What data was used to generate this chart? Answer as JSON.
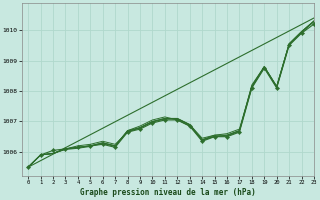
{
  "title": "Graphe pression niveau de la mer (hPa)",
  "bg_color": "#c8e8e0",
  "grid_color": "#b0d8cc",
  "line_color": "#2d6e2d",
  "xlim": [
    -0.5,
    23
  ],
  "ylim": [
    1005.2,
    1010.9
  ],
  "yticks": [
    1006,
    1007,
    1008,
    1009,
    1010
  ],
  "xticks": [
    0,
    1,
    2,
    3,
    4,
    5,
    6,
    7,
    8,
    9,
    10,
    11,
    12,
    13,
    14,
    15,
    16,
    17,
    18,
    19,
    20,
    21,
    22,
    23
  ],
  "series_marked": [
    1005.5,
    1005.9,
    1006.05,
    1006.1,
    1006.15,
    1006.2,
    1006.25,
    1006.15,
    1006.65,
    1006.75,
    1006.95,
    1007.05,
    1007.05,
    1006.85,
    1006.35,
    1006.5,
    1006.5,
    1006.65,
    1008.1,
    1008.75,
    1008.1,
    1009.5,
    1009.9,
    1010.2
  ],
  "series_smooth": [
    [
      1005.5,
      1005.9,
      1005.95,
      1006.1,
      1006.2,
      1006.25,
      1006.35,
      1006.25,
      1006.65,
      1006.8,
      1007.0,
      1007.1,
      1007.1,
      1006.9,
      1006.45,
      1006.55,
      1006.6,
      1006.75,
      1008.15,
      1008.8,
      1008.15,
      1009.55,
      1009.95,
      1010.3
    ],
    [
      1005.5,
      1005.9,
      1005.95,
      1006.1,
      1006.15,
      1006.2,
      1006.3,
      1006.2,
      1006.7,
      1006.85,
      1007.05,
      1007.15,
      1007.05,
      1006.85,
      1006.4,
      1006.5,
      1006.55,
      1006.7,
      1008.2,
      1008.8,
      1008.15,
      1009.55,
      1009.95,
      1010.3
    ],
    [
      1005.5,
      1005.9,
      1005.95,
      1006.1,
      1006.15,
      1006.2,
      1006.3,
      1006.2,
      1006.7,
      1006.8,
      1007.0,
      1007.1,
      1007.1,
      1006.9,
      1006.4,
      1006.55,
      1006.55,
      1006.7,
      1008.15,
      1008.8,
      1008.15,
      1009.55,
      1009.95,
      1010.3
    ],
    [
      1005.5,
      1005.9,
      1005.95,
      1006.08,
      1006.12,
      1006.18,
      1006.28,
      1006.18,
      1006.68,
      1006.78,
      1006.98,
      1007.08,
      1007.08,
      1006.88,
      1006.38,
      1006.52,
      1006.52,
      1006.68,
      1008.12,
      1008.78,
      1008.12,
      1009.52,
      1009.92,
      1010.28
    ]
  ]
}
